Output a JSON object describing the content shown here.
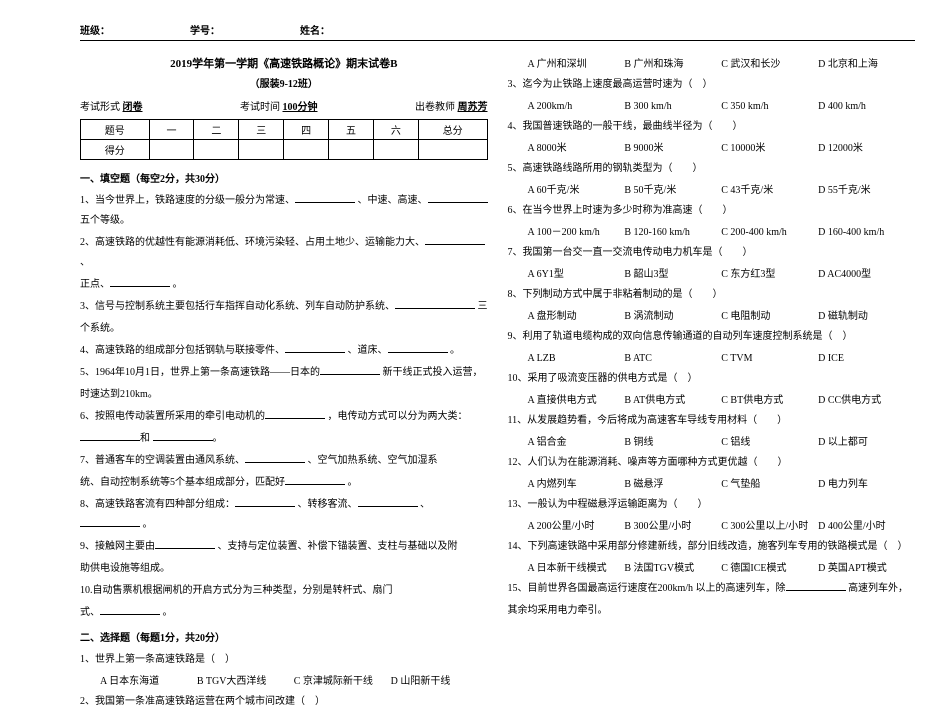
{
  "header": {
    "class_label": "班级：",
    "id_label": "学号：",
    "name_label": "姓名："
  },
  "left": {
    "title": "2019学年第一学期《高速铁路概论》期末试卷B",
    "subtitle": "（服装9-12班）",
    "form": {
      "exam_type_label": "考试形式",
      "exam_type_value": "闭卷",
      "exam_time_label": "考试时间",
      "exam_time_value": "100分钟",
      "teacher_label": "出卷教师",
      "teacher_value": "周苏芳"
    },
    "score_table": {
      "row1": [
        "题号",
        "一",
        "二",
        "三",
        "四",
        "五",
        "六",
        "总分"
      ],
      "row2": [
        "得分",
        "",
        "",
        "",
        "",
        "",
        "",
        ""
      ]
    },
    "section1_h": "一、填空题（每空2分，共30分）",
    "q1": "1、当今世界上，铁路速度的分级一般分为常速、",
    "q1b": "、中速、高速、",
    "q1c": "五个等级。",
    "q2a": "2、高速铁路的优越性有能源消耗低、环境污染轻、占用土地少、运输能力大、",
    "q2b": "、",
    "q2c": "正点、",
    "q2d": "。",
    "q3a": "3、信号与控制系统主要包括行车指挥自动化系统、列车自动防护系统、",
    "q3b": "三",
    "q3c": "个系统。",
    "q4a": "4、高速铁路的组成部分包括钢轨与联接零件、",
    "q4b": "、道床、",
    "q4c": "。",
    "q5a": "5、1964年10月1日，世界上第一条高速铁路——日本的",
    "q5b": "新干线正式投入运营，",
    "q5c": "时速达到210km。",
    "q6a": "6、按照电传动装置所采用的牵引电动机的",
    "q6b": "，电传动方式可以分为两大类：",
    "q6c": "和",
    "q6d": "。",
    "q7a": "7、普通客车的空调装置由通风系统、",
    "q7b": "、空气加热系统、空气加湿系",
    "q7c": "统、自动控制系统等5个基本组成部分，匹配好",
    "q7d": "。",
    "q8a": "8、高速铁路客流有四种部分组成：",
    "q8b": "、转移客流、",
    "q8c": "、",
    "q8d": "。",
    "q9a": "9、接触网主要由",
    "q9b": "、支持与定位装置、补偿下锚装置、支柱与基础以及附",
    "q9c": "助供电设施等组成。",
    "q10a": "10.自动售票机根据闸机的开启方式分为三种类型，分别是转杆式、扇门",
    "q10b": "式、",
    "q10c": "。",
    "section2_h": "二、选择题（每题1分，共20分）",
    "mc1": "1、世界上第一条高速铁路是（　）",
    "mc1a": "A 日本东海道",
    "mc1b": "B TGV大西洋线",
    "mc1c": "C 京津城际新干线",
    "mc1d": "D 山阳新干线",
    "mc2": "2、我国第一条准高速铁路运营在两个城市间改建（　）"
  },
  "right": {
    "mc2a": "A 广州和深圳",
    "mc2b": "B 广州和珠海",
    "mc2c": "C 武汉和长沙",
    "mc2d": "D 北京和上海",
    "mc3": "3、迄今为止铁路上速度最高运营时速为（　）",
    "mc3a": "A 200km/h",
    "mc3b": "B 300 km/h",
    "mc3c": "C   350 km/h",
    "mc3d": "D   400 km/h",
    "mc4": "4、我国普速铁路的一般干线，最曲线半径为（　　）",
    "mc4a": "A 8000米",
    "mc4b": "B 9000米",
    "mc4c": "C 10000米",
    "mc4d": "D  12000米",
    "mc5": "5、高速铁路线路所用的钢轨类型为（　　）",
    "mc5a": "A 60千克/米",
    "mc5b": "B  50千克/米",
    "mc5c": "C   43千克/米",
    "mc5d": "D   55千克/米",
    "mc6": "6、在当今世界上时速为多少时称为准高速（　　）",
    "mc6a": "A 100－200 km/h",
    "mc6b": "B 120-160 km/h",
    "mc6c": "C 200-400 km/h",
    "mc6d": "D 160-400 km/h",
    "mc7": "7、我国第一台交一直一交流电传动电力机车是（　　）",
    "mc7a": "A 6Y1型",
    "mc7b": "B  韶山3型",
    "mc7c": "C  东方红3型",
    "mc7d": "D   AC4000型",
    "mc8": "8、下列制动方式中属于非粘着制动的是（　　）",
    "mc8a": "A 盘形制动",
    "mc8b": "B   涡流制动",
    "mc8c": "C  电阻制动",
    "mc8d": "D   磁轨制动",
    "mc9": "9、利用了轨道电缆构成的双向信息传输通道的自动列车速度控制系统是（　）",
    "mc9a": "A LZB",
    "mc9b": "B  ATC",
    "mc9c": "C   TVM",
    "mc9d": "D  ICE",
    "mc10": "10、采用了吸流变压器的供电方式是（　）",
    "mc10a": "A 直接供电方式",
    "mc10b": "B AT供电方式",
    "mc10c": "C  BT供电方式",
    "mc10d": "D  CC供电方式",
    "mc11": "11、从发展趋势看，今后将成为高速客车导线专用材料（　　）",
    "mc11a": "A 铝合金",
    "mc11b": "B  铜线",
    "mc11c": "C 铝线",
    "mc11d": "D 以上都可",
    "mc12": "12、人们认为在能源消耗、噪声等方面哪种方式更优越（　　）",
    "mc12a": "A 内燃列车",
    "mc12b": "B 磁悬浮",
    "mc12c": "C 气垫船",
    "mc12d": "D 电力列车",
    "mc13": "13、一般认为中程磁悬浮运输距离为（　　）",
    "mc13a": "A 200公里/小时",
    "mc13b": "B 300公里/小时",
    "mc13c": "C 300公里以上/小时",
    "mc13d": "D 400公里/小时",
    "mc14": "14、下列高速铁路中采用部分修建新线，部分旧线改造，施客列车专用的铁路模式是（　）",
    "mc14a": "A 日本新干线模式",
    "mc14b": "B  法国TGV模式",
    "mc14c": "C  德国ICE模式",
    "mc14d": "D   英国APT模式",
    "mc15a": "15、目前世界各国最高运行速度在200km/h 以上的高速列车，除",
    "mc15b": "高速列车外，",
    "mc15c": "其余均采用电力牵引。"
  }
}
